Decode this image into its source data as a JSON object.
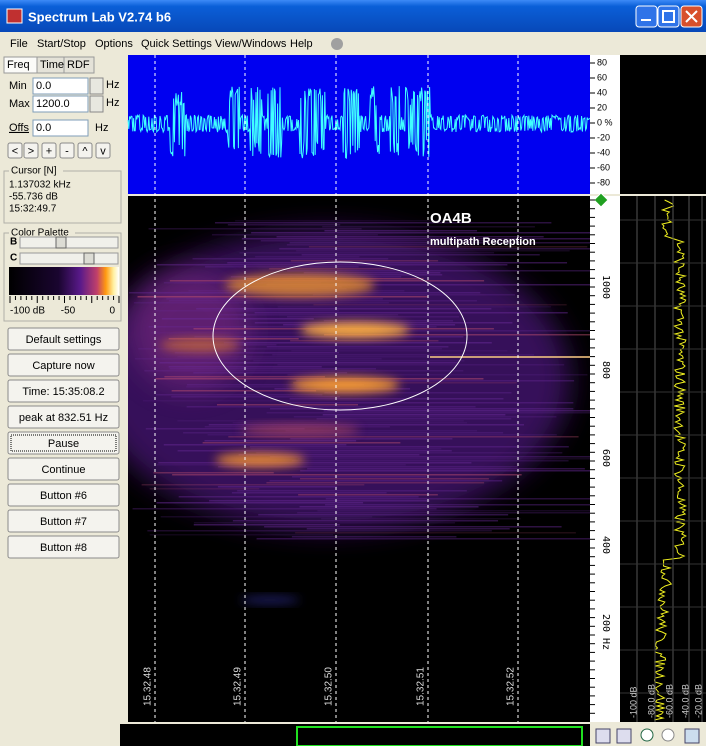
{
  "window": {
    "title": "Spectrum Lab V2.74 b6"
  },
  "menu": [
    "File",
    "Start/Stop",
    "Options",
    "Quick Settings",
    "View/Windows",
    "Help"
  ],
  "tabs": [
    "Freq",
    "Time",
    "RDF"
  ],
  "fields": [
    {
      "label": "Min",
      "value": "0.0",
      "unit": "Hz"
    },
    {
      "label": "Max",
      "value": "1200.0",
      "unit": "Hz"
    },
    {
      "label": "Offs",
      "value": "0.0",
      "unit": "Hz"
    }
  ],
  "nav_buttons": [
    "<",
    ">",
    "+",
    "-",
    "^",
    "v"
  ],
  "cursor": {
    "title": "Cursor [N]",
    "lines": [
      "1.137032 kHz",
      "-55.736 dB",
      "15:32:49.7"
    ]
  },
  "palette": {
    "title": "Color Palette",
    "sliders": [
      "B",
      "C"
    ],
    "scale": [
      "-100 dB",
      "-50",
      "0"
    ]
  },
  "buttons": [
    "Default settings",
    "Capture now",
    "Time: 15:35:08.2",
    "peak at 832.51 Hz",
    "Pause",
    "Continue",
    "Button #6",
    "Button #7",
    "Button #8"
  ],
  "scope_scale": [
    "80",
    "60",
    "40",
    "20",
    "0 %",
    "-20",
    "-40",
    "-60",
    "-80"
  ],
  "waterfall": {
    "title": "OA4B",
    "subtitle": "multipath Reception",
    "freq_labels": [
      "1000",
      "800",
      "600",
      "400",
      "200 Hz"
    ],
    "time_labels": [
      "15.32.48",
      "15.32.49",
      "15.32.50",
      "15.32.51",
      "15.32.52"
    ]
  },
  "spectrum_labels": [
    "-100 dB",
    "-80.0 dB",
    "-60.0 dB",
    "-40.0 dB",
    "-20.0 dB"
  ]
}
